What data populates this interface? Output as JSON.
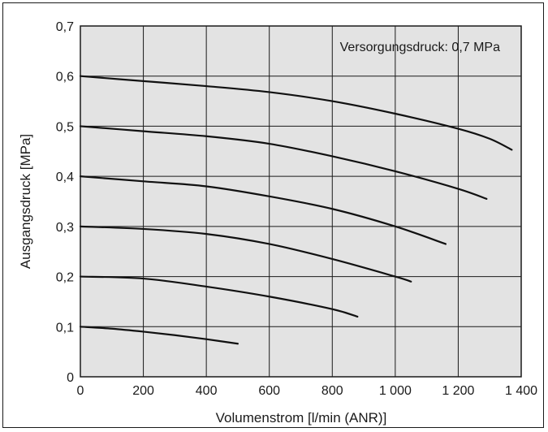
{
  "chart_data": {
    "type": "line",
    "annotation": "Versorgungsdruck: 0,7 MPa",
    "xlabel": "Volumenstrom [l/min (ANR)]",
    "ylabel": "Ausgangsdruck [MPa]",
    "xlim": [
      0,
      1400
    ],
    "ylim": [
      0,
      0.7
    ],
    "x_ticks": [
      0,
      200,
      400,
      600,
      800,
      1000,
      1200,
      1400
    ],
    "x_tick_labels": [
      "0",
      "200",
      "400",
      "600",
      "800",
      "1 000",
      "1 200",
      "1 400"
    ],
    "y_ticks": [
      0,
      0.1,
      0.2,
      0.3,
      0.4,
      0.5,
      0.6,
      0.7
    ],
    "y_tick_labels": [
      "0",
      "0,1",
      "0,2",
      "0,3",
      "0,4",
      "0,5",
      "0,6",
      "0,7"
    ],
    "grid": true,
    "plot_background": "#e3e3e3",
    "line_color": "#111111",
    "series": [
      {
        "x": [
          0,
          100,
          200,
          300,
          400,
          500
        ],
        "y": [
          0.1,
          0.096,
          0.09,
          0.083,
          0.075,
          0.066
        ]
      },
      {
        "x": [
          0,
          200,
          400,
          600,
          800,
          880
        ],
        "y": [
          0.2,
          0.196,
          0.18,
          0.16,
          0.135,
          0.12
        ]
      },
      {
        "x": [
          0,
          200,
          400,
          600,
          800,
          1000,
          1050
        ],
        "y": [
          0.3,
          0.295,
          0.285,
          0.265,
          0.235,
          0.2,
          0.19
        ]
      },
      {
        "x": [
          0,
          200,
          400,
          600,
          800,
          1000,
          1160
        ],
        "y": [
          0.4,
          0.39,
          0.38,
          0.36,
          0.335,
          0.3,
          0.265
        ]
      },
      {
        "x": [
          0,
          200,
          400,
          600,
          800,
          1000,
          1200,
          1290
        ],
        "y": [
          0.5,
          0.49,
          0.48,
          0.465,
          0.44,
          0.41,
          0.375,
          0.355
        ]
      },
      {
        "x": [
          0,
          200,
          400,
          600,
          800,
          1000,
          1200,
          1300,
          1370
        ],
        "y": [
          0.6,
          0.59,
          0.58,
          0.568,
          0.55,
          0.525,
          0.495,
          0.475,
          0.453
        ]
      }
    ]
  }
}
